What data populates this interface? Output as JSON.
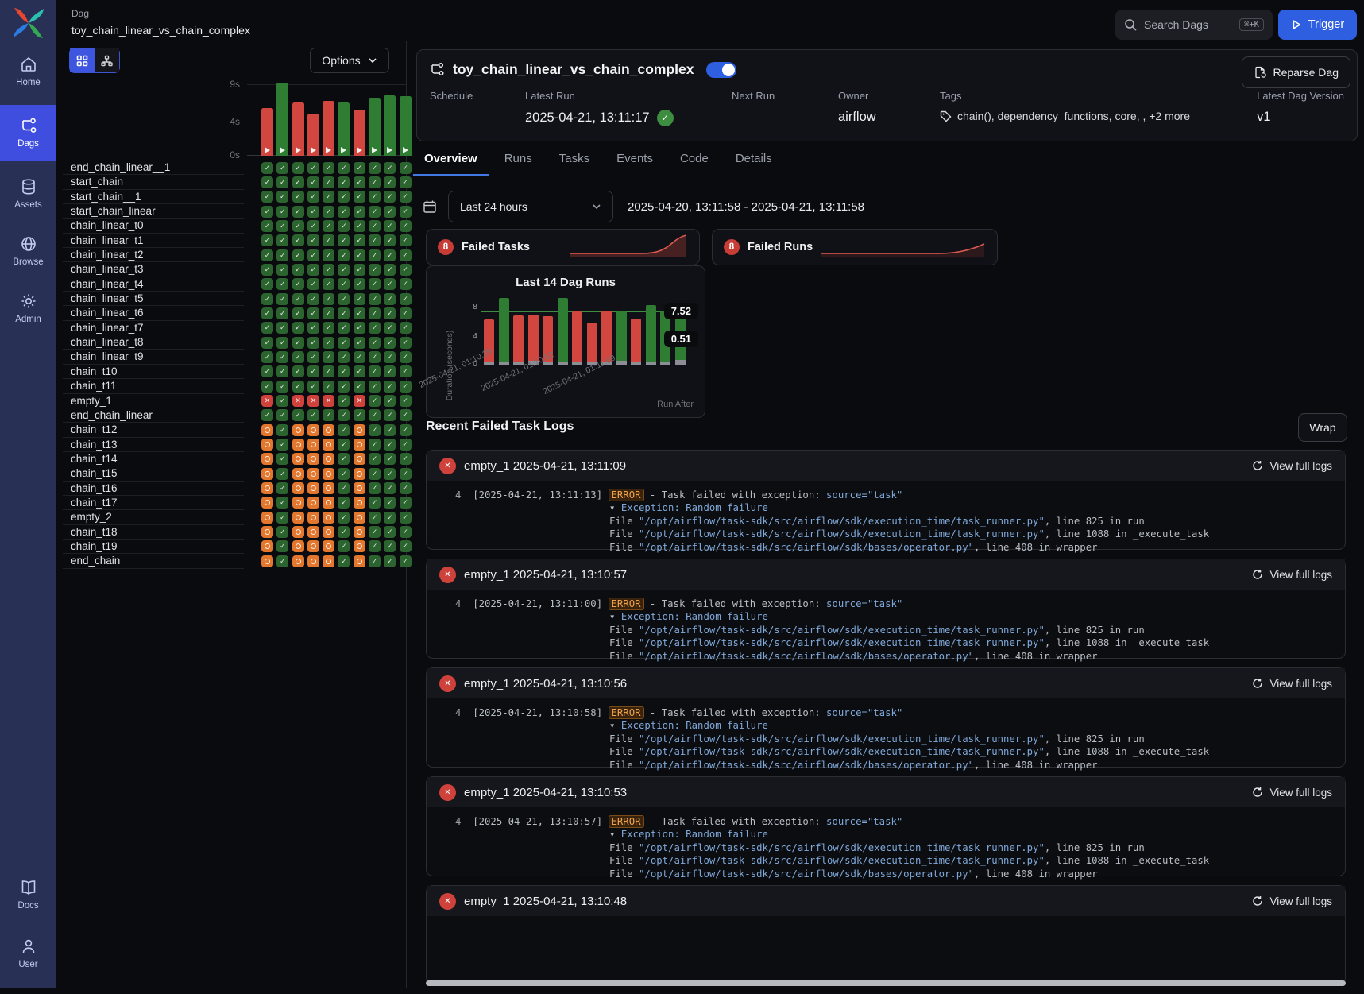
{
  "colors": {
    "accent_blue": "#2d5fe0",
    "sidebar_active_blue": "#3f4edf",
    "success_green": "#2f7d33",
    "failed_red": "#d1463e",
    "upstream_orange": "#e4772e",
    "link_blue": "#7fa8d9",
    "error_orange": "#f0a44a",
    "ref_line_green": "#3e8d42"
  },
  "sidebar": {
    "items": [
      {
        "label": "Home",
        "icon": "home-icon",
        "active": false
      },
      {
        "label": "Dags",
        "icon": "dag-icon",
        "active": true
      },
      {
        "label": "Assets",
        "icon": "database-icon",
        "active": false
      },
      {
        "label": "Browse",
        "icon": "globe-icon",
        "active": false
      },
      {
        "label": "Admin",
        "icon": "gear-icon",
        "active": false
      }
    ],
    "bottom_items": [
      {
        "label": "Docs",
        "icon": "book-icon"
      },
      {
        "label": "User",
        "icon": "user-icon"
      }
    ]
  },
  "topbar": {
    "breadcrumb": "Dag",
    "dag_id": "toy_chain_linear_vs_chain_complex",
    "search_label": "Search Dags",
    "search_shortcut": "⌘+K",
    "trigger_label": "Trigger"
  },
  "grid_panel": {
    "options_label": "Options",
    "duration_ticks": [
      "9s",
      "4s",
      "0s"
    ],
    "state_legend": {
      "S": "success",
      "F": "failed",
      "U": "upstream_failed"
    },
    "runs": [
      {
        "state": "failed",
        "duration": 6.0
      },
      {
        "state": "success",
        "duration": 9.2
      },
      {
        "state": "failed",
        "duration": 6.7
      },
      {
        "state": "failed",
        "duration": 5.3
      },
      {
        "state": "failed",
        "duration": 6.9
      },
      {
        "state": "success",
        "duration": 6.7
      },
      {
        "state": "failed",
        "duration": 5.8
      },
      {
        "state": "success",
        "duration": 7.3
      },
      {
        "state": "success",
        "duration": 7.6
      },
      {
        "state": "success",
        "duration": 7.5
      }
    ],
    "tasks": [
      {
        "name": "end_chain_linear__1",
        "states": "SSSSSSSSSS"
      },
      {
        "name": "start_chain",
        "states": "SSSSSSSSSS"
      },
      {
        "name": "start_chain__1",
        "states": "SSSSSSSSSS"
      },
      {
        "name": "start_chain_linear",
        "states": "SSSSSSSSSS"
      },
      {
        "name": "chain_linear_t0",
        "states": "SSSSSSSSSS"
      },
      {
        "name": "chain_linear_t1",
        "states": "SSSSSSSSSS"
      },
      {
        "name": "chain_linear_t2",
        "states": "SSSSSSSSSS"
      },
      {
        "name": "chain_linear_t3",
        "states": "SSSSSSSSSS"
      },
      {
        "name": "chain_linear_t4",
        "states": "SSSSSSSSSS"
      },
      {
        "name": "chain_linear_t5",
        "states": "SSSSSSSSSS"
      },
      {
        "name": "chain_linear_t6",
        "states": "SSSSSSSSSS"
      },
      {
        "name": "chain_linear_t7",
        "states": "SSSSSSSSSS"
      },
      {
        "name": "chain_linear_t8",
        "states": "SSSSSSSSSS"
      },
      {
        "name": "chain_linear_t9",
        "states": "SSSSSSSSSS"
      },
      {
        "name": "chain_t10",
        "states": "SSSSSSSSSS"
      },
      {
        "name": "chain_t11",
        "states": "SSSSSSSSSS"
      },
      {
        "name": "empty_1",
        "states": "FSFFFSFSSS"
      },
      {
        "name": "end_chain_linear",
        "states": "SSSSSSSSSS"
      },
      {
        "name": "chain_t12",
        "states": "USUUUSUSSS"
      },
      {
        "name": "chain_t13",
        "states": "USUUUSUSSS"
      },
      {
        "name": "chain_t14",
        "states": "USUUUSUSSS"
      },
      {
        "name": "chain_t15",
        "states": "USUUUSUSSS"
      },
      {
        "name": "chain_t16",
        "states": "USUUUSUSSS"
      },
      {
        "name": "chain_t17",
        "states": "USUUUSUSSS"
      },
      {
        "name": "empty_2",
        "states": "USUUUSUSSS"
      },
      {
        "name": "chain_t18",
        "states": "USUUUSUSSS"
      },
      {
        "name": "chain_t19",
        "states": "USUUUSUSSS"
      },
      {
        "name": "end_chain",
        "states": "USUUUSUSSS"
      }
    ]
  },
  "overview": {
    "dag_title": "toy_chain_linear_vs_chain_complex",
    "toggle_enabled": true,
    "reparse_label": "Reparse Dag",
    "fields": [
      {
        "label": "Schedule",
        "value": ""
      },
      {
        "label": "Latest Run",
        "value": "2025-04-21, 13:11:17",
        "badge": "success"
      },
      {
        "label": "Next Run",
        "value": ""
      },
      {
        "label": "Owner",
        "value": "airflow"
      },
      {
        "label": "Tags",
        "value": "chain(), dependency_functions, core, , +2 more"
      },
      {
        "label": "Latest Dag Version",
        "value": "v1"
      }
    ],
    "tabs": [
      {
        "label": "Overview",
        "active": true
      },
      {
        "label": "Runs",
        "active": false
      },
      {
        "label": "Tasks",
        "active": false
      },
      {
        "label": "Events",
        "active": false
      },
      {
        "label": "Code",
        "active": false
      },
      {
        "label": "Details",
        "active": false
      }
    ],
    "time_range": {
      "preset": "Last 24 hours",
      "range": "2025-04-20, 13:11:58 - 2025-04-21, 13:11:58"
    },
    "stats": [
      {
        "count": "8",
        "label": "Failed Tasks"
      },
      {
        "count": "8",
        "label": "Failed Runs"
      }
    ],
    "dag_runs_chart": {
      "type": "bar",
      "title": "Last 14 Dag Runs",
      "ylabel": "Duration (seconds)",
      "xlabel": "Run After",
      "yticks": [
        "8",
        "4",
        "0"
      ],
      "ref_line": 7.52,
      "tooltip_values": [
        "7.52",
        "0.51"
      ],
      "xtick_labels": [
        "2025-04-21, 01:10:39",
        "2025-04-21, 01:10:52",
        "2025-04-21, 01:11:09"
      ],
      "bars": [
        {
          "duration": 6.3,
          "queued": 0.5,
          "state": "failed"
        },
        {
          "duration": 9.3,
          "queued": 0.3,
          "state": "success"
        },
        {
          "duration": 6.9,
          "queued": 0.5,
          "state": "failed"
        },
        {
          "duration": 7.0,
          "queued": 0.6,
          "state": "failed"
        },
        {
          "duration": 6.8,
          "queued": 0.5,
          "state": "failed"
        },
        {
          "duration": 9.3,
          "queued": 0.3,
          "state": "success"
        },
        {
          "duration": 7.4,
          "queued": 0.4,
          "state": "failed"
        },
        {
          "duration": 5.9,
          "queued": 0.4,
          "state": "failed"
        },
        {
          "duration": 7.6,
          "queued": 0.5,
          "state": "failed"
        },
        {
          "duration": 7.4,
          "queued": 0.6,
          "state": "success"
        },
        {
          "duration": 6.5,
          "queued": 0.4,
          "state": "failed"
        },
        {
          "duration": 8.3,
          "queued": 0.5,
          "state": "success"
        },
        {
          "duration": 7.5,
          "queued": 0.5,
          "state": "success"
        },
        {
          "duration": 8.0,
          "queued": 0.7,
          "state": "success"
        }
      ]
    }
  },
  "logs": {
    "heading": "Recent Failed Task Logs",
    "wrap_label": "Wrap",
    "view_full_label": "View full logs",
    "line_no": "4",
    "error_label": "ERROR",
    "error_text": "- Task failed with exception: ",
    "source_text": "source=\"task\"",
    "exception_marker": "▾ ",
    "exception_text": "Exception: Random failure",
    "file_prefix": "File ",
    "stack": [
      {
        "path": "/opt/airflow/task-sdk/src/airflow/sdk/execution_time/task_runner.py",
        "rest": ", line 825 in run"
      },
      {
        "path": "/opt/airflow/task-sdk/src/airflow/sdk/execution_time/task_runner.py",
        "rest": ", line 1088 in _execute_task"
      },
      {
        "path": "/opt/airflow/task-sdk/src/airflow/sdk/bases/operator.py",
        "rest": ", line 408 in wrapper"
      }
    ],
    "entries": [
      {
        "task": "empty_1",
        "run_time": "2025-04-21, 13:11:09",
        "log_ts": "2025-04-21, 13:11:13"
      },
      {
        "task": "empty_1",
        "run_time": "2025-04-21, 13:10:57",
        "log_ts": "2025-04-21, 13:11:00"
      },
      {
        "task": "empty_1",
        "run_time": "2025-04-21, 13:10:56",
        "log_ts": "2025-04-21, 13:10:58"
      },
      {
        "task": "empty_1",
        "run_time": "2025-04-21, 13:10:53",
        "log_ts": "2025-04-21, 13:10:57"
      },
      {
        "task": "empty_1",
        "run_time": "2025-04-21, 13:10:48",
        "log_ts": ""
      }
    ]
  }
}
